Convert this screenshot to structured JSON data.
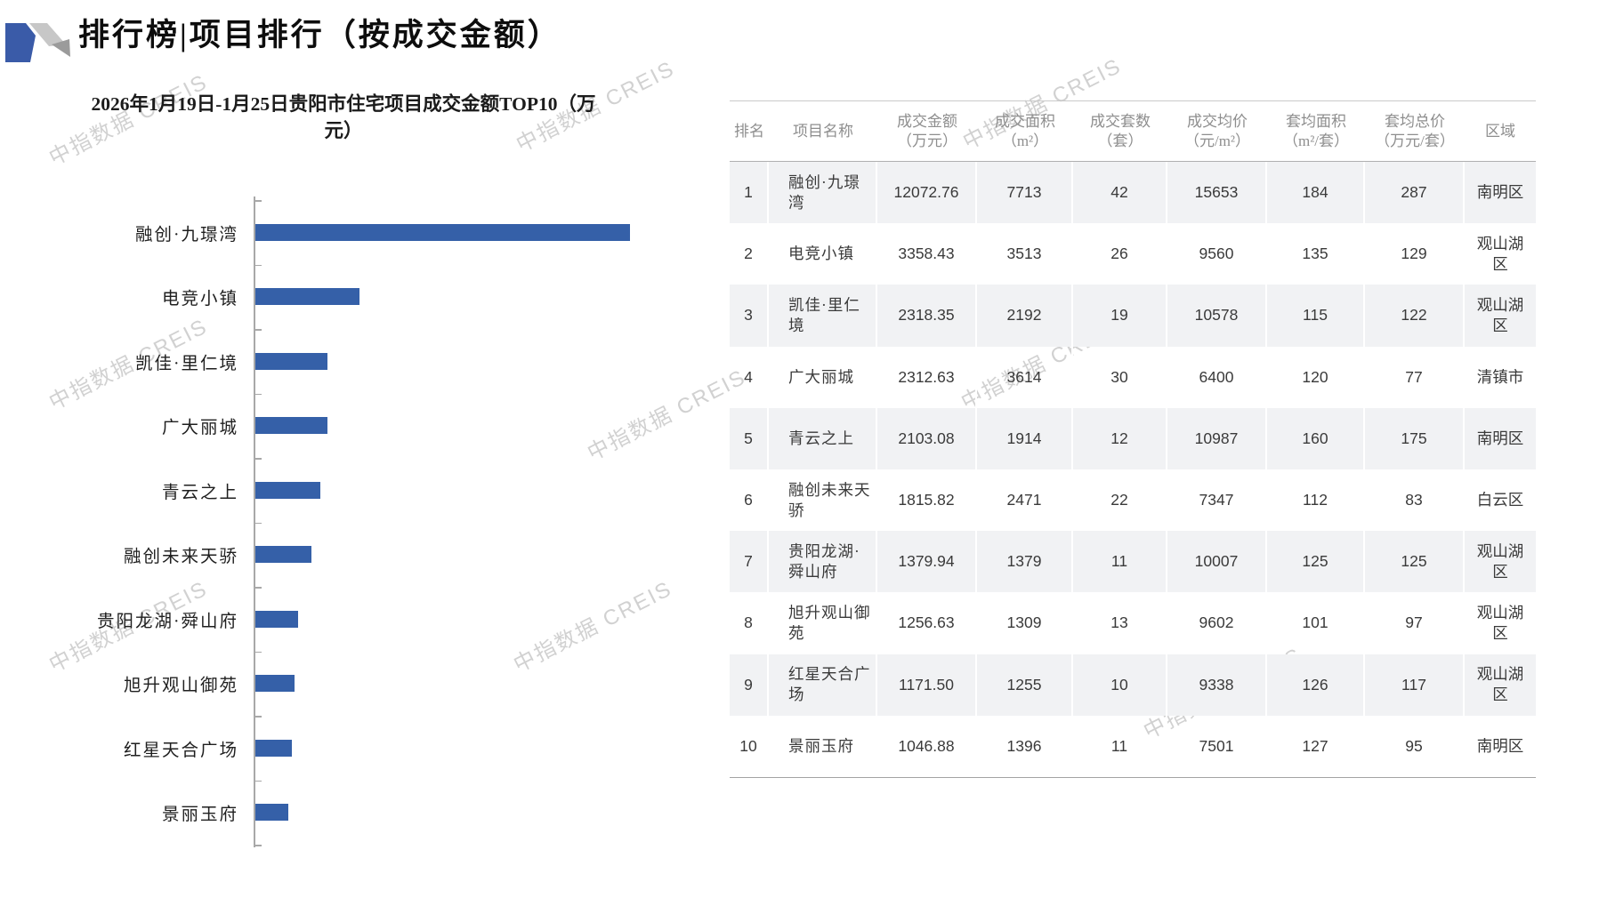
{
  "header": {
    "title": "排行榜|项目排行（按成交金额）",
    "logo": "creis-logo"
  },
  "watermark": {
    "text": "中指数据 CREIS"
  },
  "chart_data": {
    "type": "bar",
    "orientation": "horizontal",
    "title_lines": [
      "2026年1月19日-1月25日贵阳市住宅项目成交金额TOP10（万",
      "元）"
    ],
    "title": "2026年1月19日-1月25日贵阳市住宅项目成交金额TOP10（万元）",
    "categories": [
      "融创·九璟湾",
      "电竞小镇",
      "凯佳·里仁境",
      "广大丽城",
      "青云之上",
      "融创未来天骄",
      "贵阳龙湖·舜山府",
      "旭升观山御苑",
      "红星天合广场",
      "景丽玉府"
    ],
    "values": [
      12072.76,
      3358.43,
      2318.35,
      2312.63,
      2103.08,
      1815.82,
      1379.94,
      1256.63,
      1171.5,
      1046.88
    ],
    "unit": "万元",
    "xlim": [
      0,
      12072.76
    ],
    "bar_color": "#3560A8",
    "grid": false,
    "legend": false
  },
  "table": {
    "headers": [
      [
        "排名"
      ],
      [
        "项目名称"
      ],
      [
        "成交金额",
        "（万元）"
      ],
      [
        "成交面积",
        "（m²）"
      ],
      [
        "成交套数",
        "（套）"
      ],
      [
        "成交均价",
        "（元/m²）"
      ],
      [
        "套均面积",
        "（m²/套）"
      ],
      [
        "套均总价",
        "（万元/套）"
      ],
      [
        "区域"
      ]
    ],
    "rows": [
      [
        "1",
        "融创·九璟湾",
        "12072.76",
        "7713",
        "42",
        "15653",
        "184",
        "287",
        "南明区"
      ],
      [
        "2",
        "电竞小镇",
        "3358.43",
        "3513",
        "26",
        "9560",
        "135",
        "129",
        "观山湖区"
      ],
      [
        "3",
        "凯佳·里仁境",
        "2318.35",
        "2192",
        "19",
        "10578",
        "115",
        "122",
        "观山湖区"
      ],
      [
        "4",
        "广大丽城",
        "2312.63",
        "3614",
        "30",
        "6400",
        "120",
        "77",
        "清镇市"
      ],
      [
        "5",
        "青云之上",
        "2103.08",
        "1914",
        "12",
        "10987",
        "160",
        "175",
        "南明区"
      ],
      [
        "6",
        "融创未来天骄",
        "1815.82",
        "2471",
        "22",
        "7347",
        "112",
        "83",
        "白云区"
      ],
      [
        "7",
        "贵阳龙湖·舜山府",
        "1379.94",
        "1379",
        "11",
        "10007",
        "125",
        "125",
        "观山湖区"
      ],
      [
        "8",
        "旭升观山御苑",
        "1256.63",
        "1309",
        "13",
        "9602",
        "101",
        "97",
        "观山湖区"
      ],
      [
        "9",
        "红星天合广场",
        "1171.50",
        "1255",
        "10",
        "9338",
        "126",
        "117",
        "观山湖区"
      ],
      [
        "10",
        "景丽玉府",
        "1046.88",
        "1396",
        "11",
        "7501",
        "127",
        "95",
        "南明区"
      ]
    ]
  },
  "colors": {
    "bar": "#3560A8",
    "stripe": "#f1f2f4",
    "header_text": "#8e8e8e",
    "body_text": "#3a3a3a",
    "axis": "#a8a8a8",
    "logo_blue": "#3A5BA8",
    "logo_light_gray": "#c7c7c7",
    "logo_dark_gray": "#9b9b9b"
  }
}
